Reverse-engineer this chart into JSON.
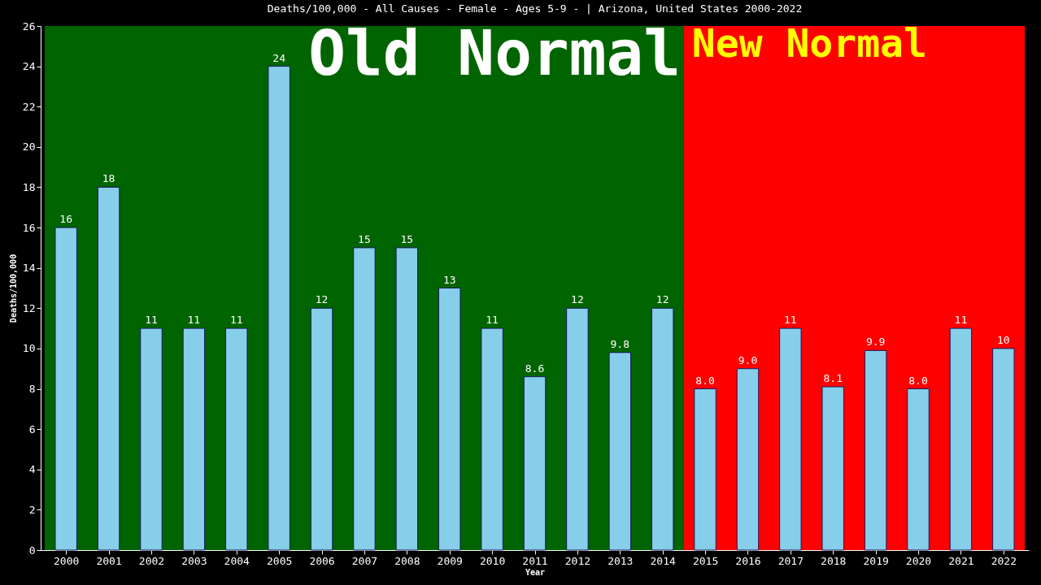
{
  "chart_data": {
    "type": "bar",
    "title": "Deaths/100,000 - All Causes - Female - Ages 5-9 -  | Arizona, United States 2000-2022",
    "xlabel": "Year",
    "ylabel": "Deaths/100,000",
    "categories": [
      "2000",
      "2001",
      "2002",
      "2003",
      "2004",
      "2005",
      "2006",
      "2007",
      "2008",
      "2009",
      "2010",
      "2011",
      "2012",
      "2013",
      "2014",
      "2015",
      "2016",
      "2017",
      "2018",
      "2019",
      "2020",
      "2021",
      "2022"
    ],
    "values": [
      16,
      18,
      11,
      11,
      11,
      24,
      12,
      15,
      15,
      13,
      11,
      8.6,
      12,
      9.8,
      12,
      8.0,
      9.0,
      11,
      8.1,
      9.9,
      8.0,
      11,
      10
    ],
    "value_labels": [
      "16",
      "18",
      "11",
      "11",
      "11",
      "24",
      "12",
      "15",
      "15",
      "13",
      "11",
      "8.6",
      "12",
      "9.8",
      "12",
      "8.0",
      "9.0",
      "11",
      "8.1",
      "9.9",
      "8.0",
      "11",
      "10"
    ],
    "color": "#87ceeb",
    "ylim": [
      0,
      26
    ],
    "yticks": [
      0,
      2,
      4,
      6,
      8,
      10,
      12,
      14,
      16,
      18,
      20,
      22,
      24,
      26
    ],
    "grid": false,
    "bands": [
      {
        "axis": "x",
        "from": "2000",
        "to": "2014",
        "label": "Old Normal",
        "color": "#006400"
      },
      {
        "axis": "x",
        "from": "2015",
        "to": "2022",
        "label": "New Normal",
        "color": "#ff0000"
      }
    ]
  }
}
